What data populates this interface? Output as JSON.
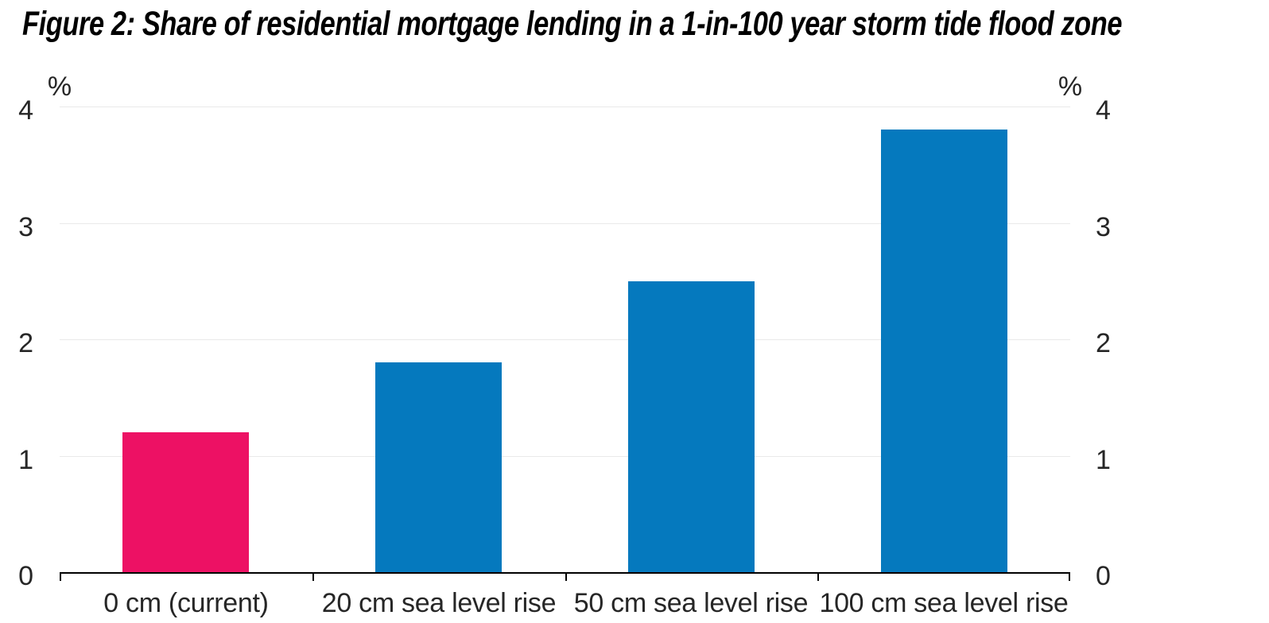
{
  "title": "Figure 2: Share of residential mortgage lending in a 1-in-100 year storm tide flood zone",
  "axis": {
    "percent_left": "%",
    "percent_right": "%"
  },
  "chart_data": {
    "type": "bar",
    "title": "Figure 2: Share of residential mortgage lending in a 1-in-100 year storm tide flood zone",
    "categories": [
      "0 cm (current)",
      "20 cm sea level rise",
      "50 cm sea level rise",
      "100 cm sea level rise"
    ],
    "values": [
      1.2,
      1.8,
      2.5,
      3.8
    ],
    "bar_colors": [
      "#ED1164",
      "#0579BE",
      "#0579BE",
      "#0579BE"
    ],
    "xlabel": "",
    "ylabel_left": "%",
    "ylabel_right": "%",
    "yticks": [
      0,
      1,
      2,
      3,
      4
    ],
    "ylim": [
      0,
      4
    ],
    "grid": true,
    "grid_axis": "y",
    "legend": "none",
    "dual_axis_labels": true
  },
  "colors": {
    "highlight_pink": "#ED1164",
    "series_blue": "#0579BE",
    "gridline": "#e9e9e9",
    "axis_line": "#000000",
    "tick_text": "#262626",
    "title_text": "#000000",
    "background": "#ffffff"
  }
}
